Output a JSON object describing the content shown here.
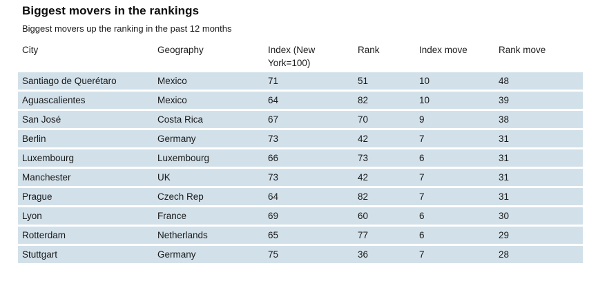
{
  "page": {
    "title": "Biggest movers in the rankings",
    "subtitle": "Biggest movers up the ranking in the past 12 months"
  },
  "table": {
    "display_columns": [
      "City",
      "Geography",
      "Index (New\nYork=100)",
      "Rank",
      "Index move",
      "Rank move"
    ],
    "rows": [
      [
        "Santiago de Querétaro",
        "Mexico",
        "71",
        "51",
        "10",
        "48"
      ],
      [
        "Aguascalientes",
        "Mexico",
        "64",
        "82",
        "10",
        "39"
      ],
      [
        "San José",
        "Costa Rica",
        "67",
        "70",
        "9",
        "38"
      ],
      [
        "Berlin",
        "Germany",
        "73",
        "42",
        "7",
        "31"
      ],
      [
        "Luxembourg",
        "Luxembourg",
        "66",
        "73",
        "6",
        "31"
      ],
      [
        "Manchester",
        "UK",
        "73",
        "42",
        "7",
        "31"
      ],
      [
        "Prague",
        "Czech Rep",
        "64",
        "82",
        "7",
        "31"
      ],
      [
        "Lyon",
        "France",
        "69",
        "60",
        "6",
        "30"
      ],
      [
        "Rotterdam",
        "Netherlands",
        "65",
        "77",
        "6",
        "29"
      ],
      [
        "Stuttgart",
        "Germany",
        "75",
        "36",
        "7",
        "28"
      ]
    ]
  },
  "colors": {
    "row_background": "#d2e0e9",
    "title_text": "#0d0d0d",
    "body_text": "#1a1a1a",
    "page_background": "#ffffff"
  },
  "chart_data": {
    "type": "table",
    "title": "Biggest movers in the rankings",
    "subtitle": "Biggest movers up the ranking in the past 12 months",
    "columns": [
      "City",
      "Geography",
      "Index (New York=100)",
      "Rank",
      "Index move",
      "Rank move"
    ],
    "rows": [
      {
        "city": "Santiago de Querétaro",
        "geography": "Mexico",
        "index": 71,
        "rank": 51,
        "index_move": 10,
        "rank_move": 48
      },
      {
        "city": "Aguascalientes",
        "geography": "Mexico",
        "index": 64,
        "rank": 82,
        "index_move": 10,
        "rank_move": 39
      },
      {
        "city": "San José",
        "geography": "Costa Rica",
        "index": 67,
        "rank": 70,
        "index_move": 9,
        "rank_move": 38
      },
      {
        "city": "Berlin",
        "geography": "Germany",
        "index": 73,
        "rank": 42,
        "index_move": 7,
        "rank_move": 31
      },
      {
        "city": "Luxembourg",
        "geography": "Luxembourg",
        "index": 66,
        "rank": 73,
        "index_move": 6,
        "rank_move": 31
      },
      {
        "city": "Manchester",
        "geography": "UK",
        "index": 73,
        "rank": 42,
        "index_move": 7,
        "rank_move": 31
      },
      {
        "city": "Prague",
        "geography": "Czech Rep",
        "index": 64,
        "rank": 82,
        "index_move": 7,
        "rank_move": 31
      },
      {
        "city": "Lyon",
        "geography": "France",
        "index": 69,
        "rank": 60,
        "index_move": 6,
        "rank_move": 30
      },
      {
        "city": "Rotterdam",
        "geography": "Netherlands",
        "index": 65,
        "rank": 77,
        "index_move": 6,
        "rank_move": 29
      },
      {
        "city": "Stuttgart",
        "geography": "Germany",
        "index": 75,
        "rank": 36,
        "index_move": 7,
        "rank_move": 28
      }
    ]
  }
}
